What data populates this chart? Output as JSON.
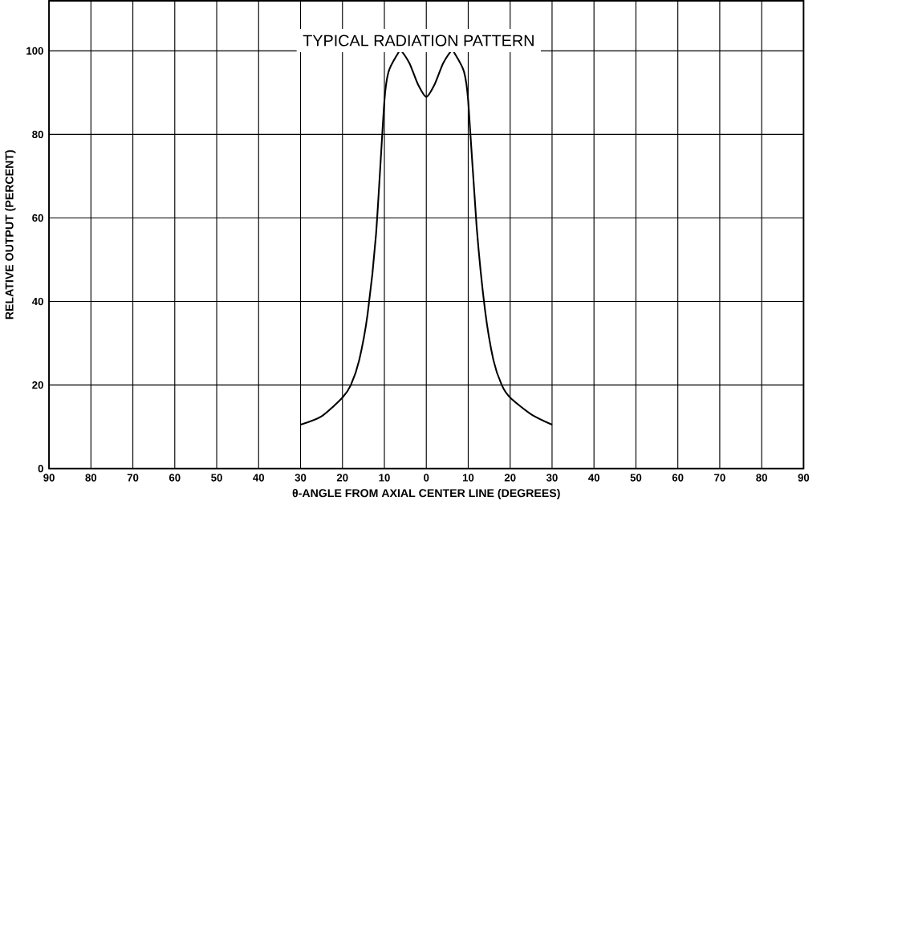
{
  "chart_data": {
    "type": "line",
    "title": "TYPICAL RADIATION PATTERN",
    "xlabel": "θ-ANGLE FROM AXIAL CENTER LINE (DEGREES)",
    "ylabel": "RELATIVE OUTPUT (PERCENT)",
    "xlim": [
      -90,
      90
    ],
    "ylim": [
      0,
      112
    ],
    "xticks": [
      {
        "value": -90,
        "label": "90"
      },
      {
        "value": -80,
        "label": "80"
      },
      {
        "value": -70,
        "label": "70"
      },
      {
        "value": -60,
        "label": "60"
      },
      {
        "value": -50,
        "label": "50"
      },
      {
        "value": -40,
        "label": "40"
      },
      {
        "value": -30,
        "label": "30"
      },
      {
        "value": -20,
        "label": "20"
      },
      {
        "value": -10,
        "label": "10"
      },
      0,
      10,
      20,
      30,
      40,
      50,
      60,
      70,
      80,
      90
    ],
    "yticks": [
      0,
      20,
      40,
      60,
      80,
      100
    ],
    "grid": true,
    "marker": "none",
    "line_style": "solid",
    "series": [
      {
        "color": "#000000",
        "x": [
          -30,
          -25,
          -20,
          -18,
          -16,
          -14,
          -12,
          -10,
          -9,
          -7,
          -6,
          -4,
          -2,
          0,
          2,
          4,
          6,
          7,
          9,
          10,
          12,
          14,
          16,
          18,
          20,
          25,
          30
        ],
        "values": [
          10.5,
          12.5,
          17,
          20,
          26,
          37,
          56,
          88,
          95,
          99,
          100,
          97,
          92,
          89,
          92,
          97,
          100,
          99,
          95,
          88,
          58,
          38,
          26,
          20,
          17,
          13,
          10.5
        ]
      }
    ]
  }
}
